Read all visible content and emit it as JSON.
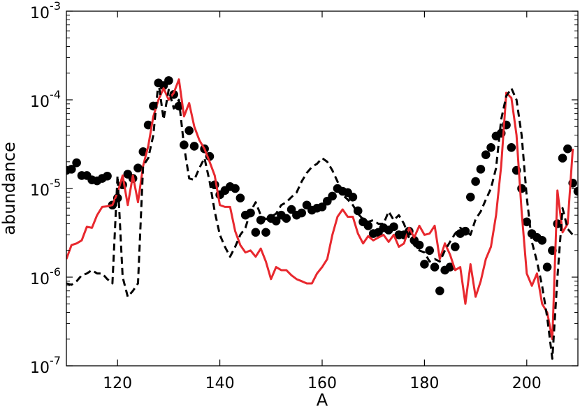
{
  "chart_data": {
    "type": "line",
    "xlabel": "A",
    "ylabel": "abundance",
    "yscale": "log",
    "xlim": [
      110,
      210
    ],
    "ylim": [
      1e-07,
      0.001
    ],
    "grid": false,
    "legend": "none",
    "x_ticks": [
      {
        "value": 120,
        "label": "120"
      },
      {
        "value": 140,
        "label": "140"
      },
      {
        "value": 160,
        "label": "160"
      },
      {
        "value": 180,
        "label": "180"
      },
      {
        "value": 200,
        "label": "200"
      }
    ],
    "y_ticks": [
      {
        "value": 1e-07,
        "base": "10",
        "exp": "-7"
      },
      {
        "value": 1e-06,
        "base": "10",
        "exp": "-6"
      },
      {
        "value": 1e-05,
        "base": "10",
        "exp": "-5"
      },
      {
        "value": 0.0001,
        "base": "10",
        "exp": "-4"
      },
      {
        "value": 0.001,
        "base": "10",
        "exp": "-3"
      }
    ],
    "series": [
      {
        "style": "dots",
        "color": "#000000",
        "points": [
          [
            110,
            1.6e-05
          ],
          [
            111,
            1.65e-05
          ],
          [
            112,
            1.95e-05
          ],
          [
            113,
            1.4e-05
          ],
          [
            114,
            1.4e-05
          ],
          [
            115,
            1.25e-05
          ],
          [
            116,
            1.22e-05
          ],
          [
            117,
            1.3e-05
          ],
          [
            118,
            1.38e-05
          ],
          [
            119,
            6.5e-06
          ],
          [
            120,
            7.8e-06
          ],
          [
            121,
            1.1e-05
          ],
          [
            122,
            1.45e-05
          ],
          [
            123,
            1.3e-05
          ],
          [
            124,
            1.7e-05
          ],
          [
            125,
            2.6e-05
          ],
          [
            126,
            5.2e-05
          ],
          [
            127,
            8.5e-05
          ],
          [
            128,
            0.000155
          ],
          [
            129,
            0.000145
          ],
          [
            130,
            0.000165
          ],
          [
            131,
            0.000115
          ],
          [
            132,
            8.5e-05
          ],
          [
            133,
            3.1e-05
          ],
          [
            134,
            4.5e-05
          ],
          [
            135,
            3e-05
          ],
          [
            137,
            2.8e-05
          ],
          [
            138,
            2.3e-05
          ],
          [
            139,
            1.1e-05
          ],
          [
            140,
            8.5e-06
          ],
          [
            141,
            9.5e-06
          ],
          [
            142,
            1.05e-05
          ],
          [
            143,
            1e-05
          ],
          [
            144,
            7.8e-06
          ],
          [
            145,
            5e-06
          ],
          [
            146,
            5.3e-06
          ],
          [
            147,
            3.2e-06
          ],
          [
            148,
            4.4e-06
          ],
          [
            149,
            3.2e-06
          ],
          [
            150,
            4.6e-06
          ],
          [
            151,
            4.3e-06
          ],
          [
            152,
            5e-06
          ],
          [
            153,
            4.6e-06
          ],
          [
            154,
            5.8e-06
          ],
          [
            155,
            5e-06
          ],
          [
            156,
            5.3e-06
          ],
          [
            157,
            6.5e-06
          ],
          [
            158,
            5.7e-06
          ],
          [
            159,
            6e-06
          ],
          [
            160,
            6.2e-06
          ],
          [
            161,
            7.2e-06
          ],
          [
            162,
            8.2e-06
          ],
          [
            163,
            1e-05
          ],
          [
            164,
            9.3e-06
          ],
          [
            165,
            9e-06
          ],
          [
            166,
            8e-06
          ],
          [
            167,
            5.6e-06
          ],
          [
            168,
            4.2e-06
          ],
          [
            169,
            3.8e-06
          ],
          [
            170,
            3.1e-06
          ],
          [
            171,
            3.2e-06
          ],
          [
            172,
            3.6e-06
          ],
          [
            173,
            3.4e-06
          ],
          [
            174,
            3.7e-06
          ],
          [
            175,
            3e-06
          ],
          [
            176,
            3e-06
          ],
          [
            177,
            3.3e-06
          ],
          [
            178,
            2.6e-06
          ],
          [
            179,
            2.3e-06
          ],
          [
            180,
            1.4e-06
          ],
          [
            181,
            2e-06
          ],
          [
            182,
            1.3e-06
          ],
          [
            183,
            7e-07
          ],
          [
            184,
            1.2e-06
          ],
          [
            185,
            1.3e-06
          ],
          [
            186,
            2.2e-06
          ],
          [
            187,
            3.1e-06
          ],
          [
            188,
            3.3e-06
          ],
          [
            189,
            8e-06
          ],
          [
            190,
            1.2e-05
          ],
          [
            191,
            1.65e-05
          ],
          [
            192,
            2.4e-05
          ],
          [
            193,
            2.9e-05
          ],
          [
            194,
            3.9e-05
          ],
          [
            195,
            4.2e-05
          ],
          [
            196,
            5.2e-05
          ],
          [
            197,
            2.9e-05
          ],
          [
            198,
            1.6e-05
          ],
          [
            199,
            1e-05
          ],
          [
            200,
            4.2e-06
          ],
          [
            201,
            3.1e-06
          ],
          [
            202,
            2.8e-06
          ],
          [
            203,
            2.6e-06
          ],
          [
            204,
            1.3e-06
          ],
          [
            205,
            2e-06
          ],
          [
            206,
            4e-06
          ],
          [
            207,
            2.2e-05
          ],
          [
            208,
            2.8e-05
          ],
          [
            209,
            1.15e-05
          ],
          [
            210,
            9.3e-06
          ]
        ]
      },
      {
        "style": "solid",
        "color": "#e8282e",
        "points": [
          [
            110,
            1.6e-06
          ],
          [
            111,
            2.3e-06
          ],
          [
            112,
            2.4e-06
          ],
          [
            113,
            2.6e-06
          ],
          [
            114,
            3.7e-06
          ],
          [
            115,
            3.6e-06
          ],
          [
            116,
            5e-06
          ],
          [
            117,
            6.2e-06
          ],
          [
            118,
            6.3e-06
          ],
          [
            119,
            6.5e-06
          ],
          [
            120,
            9e-06
          ],
          [
            121,
            1.4e-05
          ],
          [
            122,
            6.5e-06
          ],
          [
            123,
            1.4e-05
          ],
          [
            124,
            7e-06
          ],
          [
            125,
            1.8e-05
          ],
          [
            126,
            3e-05
          ],
          [
            127,
            6.5e-05
          ],
          [
            128,
            0.0001
          ],
          [
            129,
            0.000135
          ],
          [
            130,
            0.0001
          ],
          [
            131,
            0.00012
          ],
          [
            132,
            0.00017
          ],
          [
            133,
            6.5e-05
          ],
          [
            134,
            9.2e-05
          ],
          [
            135,
            5e-05
          ],
          [
            136,
            3.5e-05
          ],
          [
            137,
            2.8e-05
          ],
          [
            138,
            2e-05
          ],
          [
            139,
            1.4e-05
          ],
          [
            140,
            6.5e-06
          ],
          [
            141,
            6.2e-06
          ],
          [
            142,
            6.2e-06
          ],
          [
            143,
            3.3e-06
          ],
          [
            144,
            2.3e-06
          ],
          [
            145,
            1.9e-06
          ],
          [
            146,
            2e-06
          ],
          [
            147,
            1.7e-06
          ],
          [
            148,
            2.1e-06
          ],
          [
            149,
            1.5e-06
          ],
          [
            150,
            9.5e-07
          ],
          [
            151,
            1.3e-06
          ],
          [
            152,
            1.2e-06
          ],
          [
            153,
            1.2e-06
          ],
          [
            154,
            1.05e-06
          ],
          [
            155,
            9.5e-07
          ],
          [
            156,
            9e-07
          ],
          [
            157,
            8.5e-07
          ],
          [
            158,
            8.5e-07
          ],
          [
            159,
            1.1e-06
          ],
          [
            160,
            1.3e-06
          ],
          [
            161,
            1.6e-06
          ],
          [
            162,
            3e-06
          ],
          [
            163,
            4.8e-06
          ],
          [
            164,
            5.8e-06
          ],
          [
            165,
            4.8e-06
          ],
          [
            166,
            4.8e-06
          ],
          [
            167,
            3.1e-06
          ],
          [
            168,
            2.4e-06
          ],
          [
            169,
            2.9e-06
          ],
          [
            170,
            2.6e-06
          ],
          [
            171,
            2.8e-06
          ],
          [
            172,
            3e-06
          ],
          [
            173,
            2.5e-06
          ],
          [
            174,
            3e-06
          ],
          [
            175,
            2.2e-06
          ],
          [
            176,
            2.4e-06
          ],
          [
            177,
            3.6e-06
          ],
          [
            178,
            2.8e-06
          ],
          [
            179,
            3.8e-06
          ],
          [
            180,
            3e-06
          ],
          [
            181,
            3.1e-06
          ],
          [
            182,
            3.8e-06
          ],
          [
            183,
            1.6e-06
          ],
          [
            184,
            2.4e-06
          ],
          [
            185,
            1.8e-06
          ],
          [
            186,
            1.2e-06
          ],
          [
            187,
            1.3e-06
          ],
          [
            188,
            5e-07
          ],
          [
            189,
            1.4e-06
          ],
          [
            190,
            6e-07
          ],
          [
            191,
            9e-07
          ],
          [
            192,
            1.6e-06
          ],
          [
            193,
            2.2e-06
          ],
          [
            194,
            5e-06
          ],
          [
            195,
            1.8e-05
          ],
          [
            196,
            0.00012
          ],
          [
            197,
            0.000105
          ],
          [
            198,
            4e-05
          ],
          [
            199,
            5.5e-06
          ],
          [
            200,
            1.1e-06
          ],
          [
            201,
            8e-07
          ],
          [
            202,
            1.1e-06
          ],
          [
            203,
            5e-07
          ],
          [
            204,
            4e-07
          ],
          [
            205,
            2e-07
          ],
          [
            206,
            9.5e-06
          ],
          [
            207,
            3.2e-06
          ],
          [
            208,
            4e-06
          ],
          [
            209,
            2.8e-05
          ]
        ]
      },
      {
        "style": "dashed",
        "color": "#000000",
        "points": [
          [
            110,
            8.5e-07
          ],
          [
            111,
            8.2e-07
          ],
          [
            112,
            9e-07
          ],
          [
            113,
            1.05e-06
          ],
          [
            114,
            1.1e-06
          ],
          [
            115,
            1.2e-06
          ],
          [
            116,
            1.1e-06
          ],
          [
            117,
            1.1e-06
          ],
          [
            118,
            9.5e-07
          ],
          [
            119,
            8.5e-07
          ],
          [
            120,
            1.4e-05
          ],
          [
            121,
            1e-06
          ],
          [
            122,
            6e-07
          ],
          [
            123,
            7e-07
          ],
          [
            124,
            8.5e-07
          ],
          [
            125,
            1.8e-05
          ],
          [
            126,
            2.2e-05
          ],
          [
            127,
            4e-05
          ],
          [
            128,
            0.00016
          ],
          [
            129,
            6e-05
          ],
          [
            130,
            0.00013
          ],
          [
            131,
            8e-05
          ],
          [
            132,
            0.0001
          ],
          [
            133,
            3e-05
          ],
          [
            134,
            1.3e-05
          ],
          [
            135,
            1.25e-05
          ],
          [
            136,
            1.7e-05
          ],
          [
            137,
            2.2e-05
          ],
          [
            138,
            1.2e-05
          ],
          [
            139,
            5.5e-06
          ],
          [
            140,
            3e-06
          ],
          [
            141,
            2.2e-06
          ],
          [
            142,
            1.7e-06
          ],
          [
            143,
            2.2e-06
          ],
          [
            144,
            3e-06
          ],
          [
            145,
            3.6e-06
          ],
          [
            146,
            5.5e-06
          ],
          [
            147,
            7e-06
          ],
          [
            148,
            5e-06
          ],
          [
            149,
            4.5e-06
          ],
          [
            150,
            4.8e-06
          ],
          [
            151,
            5.2e-06
          ],
          [
            152,
            6.5e-06
          ],
          [
            153,
            7e-06
          ],
          [
            154,
            8e-06
          ],
          [
            155,
            9e-06
          ],
          [
            156,
            1.2e-05
          ],
          [
            157,
            1.5e-05
          ],
          [
            158,
            1.75e-05
          ],
          [
            159,
            1.9e-05
          ],
          [
            160,
            2.2e-05
          ],
          [
            161,
            2e-05
          ],
          [
            162,
            1.6e-05
          ],
          [
            163,
            1.2e-05
          ],
          [
            164,
            8.5e-06
          ],
          [
            165,
            7.5e-06
          ],
          [
            166,
            6.5e-06
          ],
          [
            167,
            5.2e-06
          ],
          [
            168,
            4.5e-06
          ],
          [
            169,
            4.2e-06
          ],
          [
            170,
            4.4e-06
          ],
          [
            171,
            4e-06
          ],
          [
            172,
            4e-06
          ],
          [
            173,
            5.5e-06
          ],
          [
            174,
            4.4e-06
          ],
          [
            175,
            5e-06
          ],
          [
            176,
            4e-06
          ],
          [
            177,
            2.8e-06
          ],
          [
            178,
            2.3e-06
          ],
          [
            179,
            2e-06
          ],
          [
            180,
            1.9e-06
          ],
          [
            181,
            1.5e-06
          ],
          [
            182,
            1.6e-06
          ],
          [
            183,
            1.5e-06
          ],
          [
            184,
            2e-06
          ],
          [
            185,
            2.5e-06
          ],
          [
            186,
            3.1e-06
          ],
          [
            187,
            3.6e-06
          ],
          [
            188,
            3.3e-06
          ],
          [
            189,
            3e-06
          ],
          [
            190,
            4.5e-06
          ],
          [
            191,
            5.5e-06
          ],
          [
            192,
            7.5e-06
          ],
          [
            193,
            1e-05
          ],
          [
            194,
            1.7e-05
          ],
          [
            195,
            6e-05
          ],
          [
            196,
            0.00011
          ],
          [
            197,
            0.000135
          ],
          [
            198,
            0.0001
          ],
          [
            199,
            4e-05
          ],
          [
            200,
            8e-06
          ],
          [
            201,
            2.5e-06
          ],
          [
            202,
            1.5e-06
          ],
          [
            203,
            8e-07
          ],
          [
            204,
            3.5e-07
          ],
          [
            205,
            1.2e-07
          ],
          [
            206,
            1e-06
          ],
          [
            207,
            6e-06
          ],
          [
            208,
            3.5e-06
          ],
          [
            209,
            3e-06
          ]
        ]
      }
    ]
  }
}
